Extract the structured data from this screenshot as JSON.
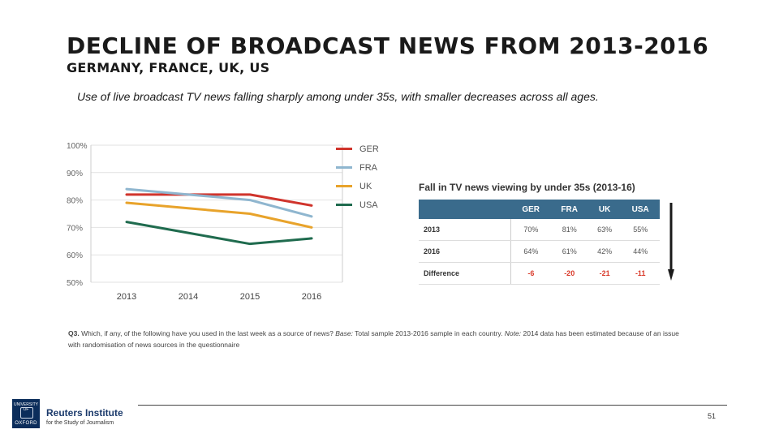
{
  "header": {
    "title": "DECLINE OF BROADCAST NEWS FROM 2013-2016",
    "subtitle": "GERMANY, FRANCE, UK, US",
    "lede": "Use of live broadcast TV news falling sharply among under 35s, with smaller decreases across all ages."
  },
  "chart_data": [
    {
      "type": "line",
      "title": "",
      "xlabel": "",
      "ylabel": "",
      "x": [
        "2013",
        "2014",
        "2015",
        "2016"
      ],
      "ylim": [
        50,
        100
      ],
      "yticks": [
        "50%",
        "60%",
        "70%",
        "80%",
        "90%",
        "100%"
      ],
      "ytick_values": [
        50,
        60,
        70,
        80,
        90,
        100
      ],
      "grid": true,
      "legend": "right",
      "series": [
        {
          "name": "GER",
          "color": "#d0342c",
          "values": [
            82,
            82,
            82,
            78
          ]
        },
        {
          "name": "FRA",
          "color": "#8fb6cf",
          "values": [
            84,
            82,
            80,
            74
          ]
        },
        {
          "name": "UK",
          "color": "#e8a32b",
          "values": [
            79,
            77,
            75,
            70
          ]
        },
        {
          "name": "USA",
          "color": "#1f6b4e",
          "values": [
            72,
            68,
            64,
            66
          ]
        }
      ]
    },
    {
      "type": "table",
      "title": "Fall in TV news viewing by under 35s (2013-16)",
      "columns": [
        "",
        "GER",
        "FRA",
        "UK",
        "USA"
      ],
      "rows": [
        {
          "label": "2013",
          "values": [
            "70%",
            "81%",
            "63%",
            "55%"
          ]
        },
        {
          "label": "2016",
          "values": [
            "64%",
            "61%",
            "42%",
            "44%"
          ]
        },
        {
          "label": "Difference",
          "values": [
            "-6",
            "-20",
            "-21",
            "-11"
          ]
        }
      ]
    }
  ],
  "colors": {
    "table_header": "#3a6b8c",
    "difference": "#d93a2a",
    "arrow": "#1a1a1a"
  },
  "footnote": {
    "q": "Q3.",
    "text": "Which, if any, of the following have you used in the last week as a source of news?",
    "base_label": "Base:",
    "base_text": "Total sample 2013-2016 sample in each country.",
    "note_label": "Note:",
    "note_text": "2014 data has been estimated because of an issue with randomisation of news sources in the questionnaire"
  },
  "logo": {
    "crest_top": "UNIVERSITY OF",
    "crest_bottom": "OXFORD",
    "name": "Reuters Institute",
    "sub": "for the Study of Journalism"
  },
  "page_number": "51"
}
